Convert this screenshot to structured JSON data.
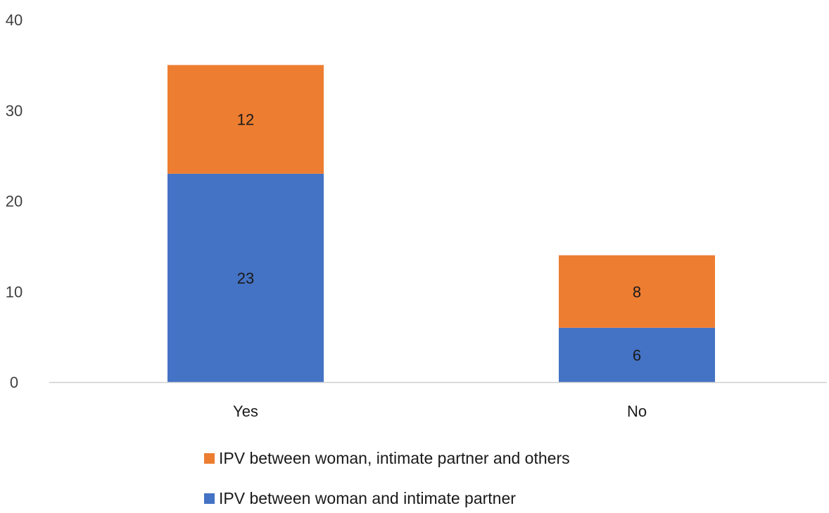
{
  "chart_data": {
    "type": "bar",
    "stacked": true,
    "categories": [
      "Yes",
      "No"
    ],
    "series": [
      {
        "name": "IPV between woman and intimate partner",
        "values": [
          23,
          6
        ],
        "color": "#4472C4"
      },
      {
        "name": "IPV between woman, intimate partner and others",
        "values": [
          12,
          8
        ],
        "color": "#ED7D31"
      }
    ],
    "yticks": [
      0,
      10,
      20,
      30,
      40
    ],
    "ylim": [
      0,
      40
    ],
    "grid": false,
    "legend_position": "bottom",
    "legend_order": [
      1,
      0
    ],
    "title": "",
    "xlabel": "",
    "ylabel": ""
  }
}
